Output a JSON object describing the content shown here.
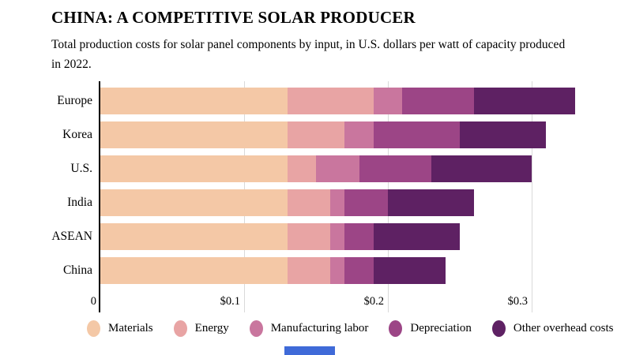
{
  "header": {
    "title": "CHINA: A COMPETITIVE SOLAR PRODUCER",
    "subtitle": "Total production costs for solar panel components by input, in U.S. dollars per watt of capacity produced in 2022."
  },
  "chart_data": {
    "type": "bar",
    "variant": "horizontal-stacked",
    "title": "CHINA: A COMPETITIVE SOLAR PRODUCER",
    "subtitle": "Total production costs for solar panel components by input, in U.S. dollars per watt of capacity produced in 2022.",
    "unit": "U.S. dollars per watt of capacity",
    "categories": [
      "Europe",
      "Korea",
      "U.S.",
      "India",
      "ASEAN",
      "China"
    ],
    "series": [
      {
        "name": "Materials",
        "color": "#f4c8a6",
        "values": [
          0.13,
          0.13,
          0.13,
          0.13,
          0.13,
          0.13
        ]
      },
      {
        "name": "Energy",
        "color": "#e8a4a4",
        "values": [
          0.06,
          0.04,
          0.02,
          0.03,
          0.03,
          0.03
        ]
      },
      {
        "name": "Manufacturing labor",
        "color": "#c9769e",
        "values": [
          0.02,
          0.02,
          0.03,
          0.01,
          0.01,
          0.01
        ]
      },
      {
        "name": "Depreciation",
        "color": "#9c4586",
        "values": [
          0.05,
          0.06,
          0.05,
          0.03,
          0.02,
          0.02
        ]
      },
      {
        "name": "Other overhead costs",
        "color": "#5e2163",
        "values": [
          0.07,
          0.06,
          0.07,
          0.06,
          0.06,
          0.05
        ]
      }
    ],
    "totals": [
      0.33,
      0.31,
      0.3,
      0.26,
      0.25,
      0.24
    ],
    "x_ticks": [
      {
        "label": "0",
        "value": 0
      },
      {
        "label": "$0.1",
        "value": 0.1
      },
      {
        "label": "$0.2",
        "value": 0.2
      },
      {
        "label": "$0.3",
        "value": 0.3
      }
    ],
    "x_max": 0.35,
    "grid": true,
    "gridline_color": "#d9d9d9",
    "axis_color": "#000000",
    "legend_position": "bottom"
  },
  "page": {
    "bottom_fragment_color": "#3f6ad8"
  }
}
